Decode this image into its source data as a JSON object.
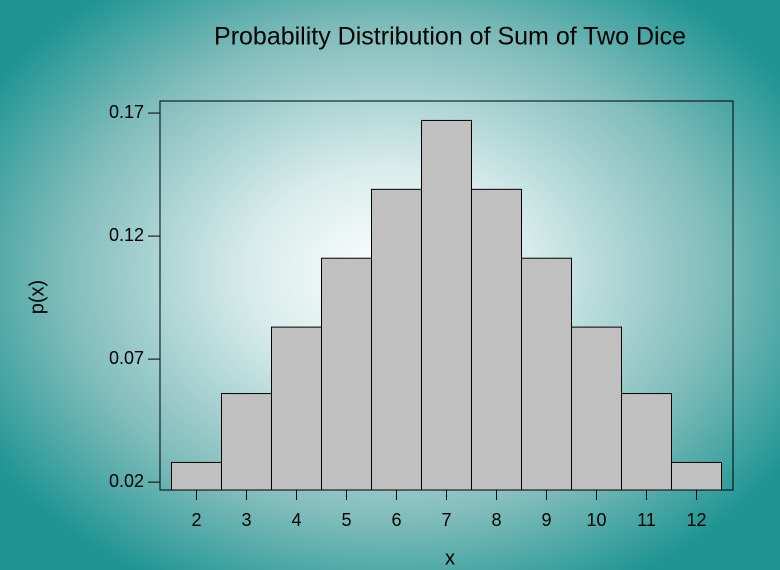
{
  "chart_data": {
    "type": "bar",
    "title": "Probability Distribution of Sum of Two Dice",
    "xlabel": "x",
    "ylabel": "p(x)",
    "categories": [
      "2",
      "3",
      "4",
      "5",
      "6",
      "7",
      "8",
      "9",
      "10",
      "11",
      "12"
    ],
    "values": [
      0.028,
      0.056,
      0.083,
      0.111,
      0.139,
      0.167,
      0.139,
      0.111,
      0.083,
      0.056,
      0.028
    ],
    "color": "#c0c0c0",
    "ylim": [
      0.0168,
      0.1749
    ],
    "yticks": [
      0.02,
      0.07,
      0.12,
      0.17
    ]
  }
}
